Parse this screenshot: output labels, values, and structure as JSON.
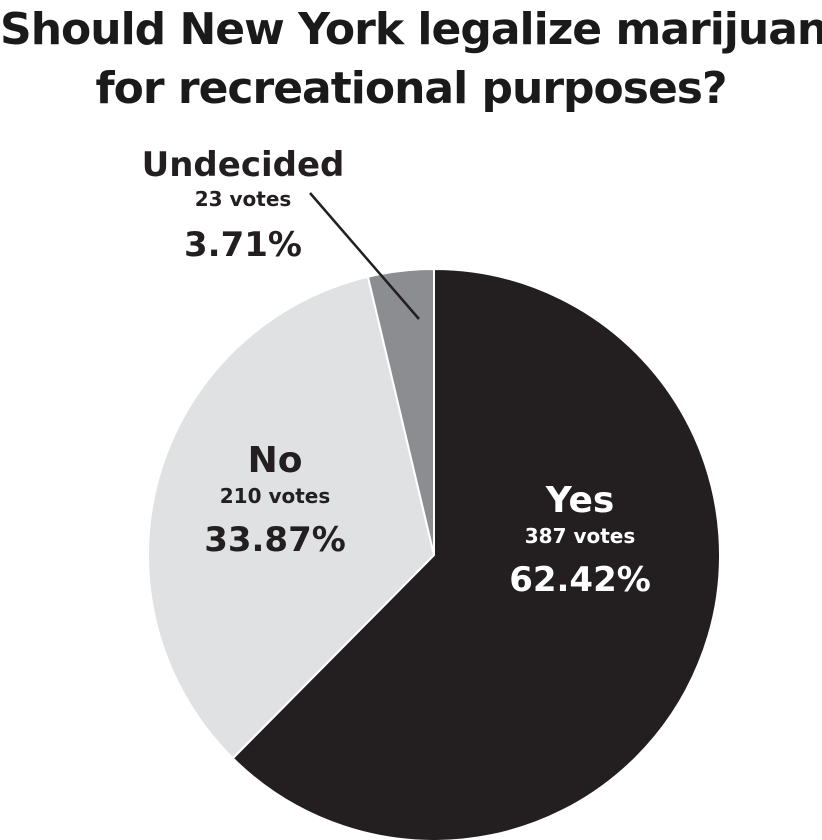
{
  "chart_data": {
    "type": "pie",
    "title_lines": [
      "Should New York legalize marijuana",
      "for recreational purposes?"
    ],
    "slices": [
      {
        "name": "Yes",
        "votes": 387,
        "votes_label": "387 votes",
        "percent": 62.42,
        "percent_label": "62.42%",
        "color": "#231f20",
        "text_color": "#ffffff"
      },
      {
        "name": "No",
        "votes": 210,
        "votes_label": "210 votes",
        "percent": 33.87,
        "percent_label": "33.87%",
        "color": "#e0e1e3",
        "text_color": "#231f20"
      },
      {
        "name": "Undecided",
        "votes": 23,
        "votes_label": "23 votes",
        "percent": 3.71,
        "percent_label": "3.71%",
        "color": "#8c8d90",
        "text_color": "#231f20"
      }
    ],
    "start": "12 o'clock",
    "direction": "clockwise",
    "outline_color": "#ffffff",
    "legend": "none"
  }
}
